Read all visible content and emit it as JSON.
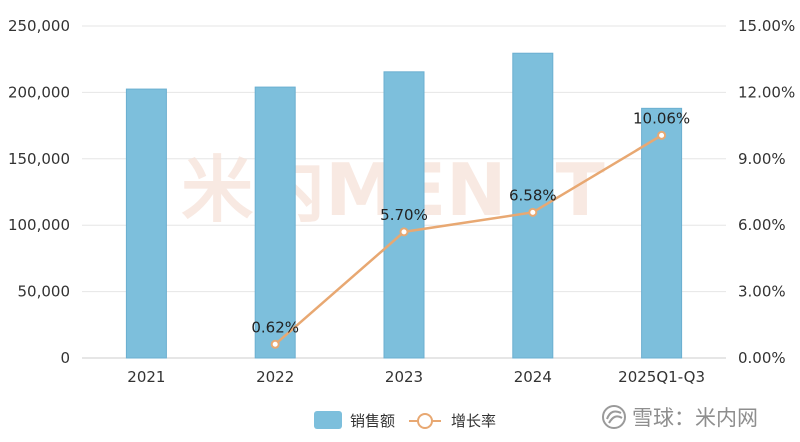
{
  "chart_data": {
    "type": "bar",
    "categories": [
      "2021",
      "2022",
      "2023",
      "2024",
      "2025Q1-Q3"
    ],
    "series": [
      {
        "name": "销售额",
        "kind": "bar",
        "axis": "left",
        "values": [
          202500,
          204000,
          215500,
          229500,
          188000
        ]
      },
      {
        "name": "增长率",
        "kind": "line",
        "axis": "right",
        "values": [
          null,
          0.62,
          5.7,
          6.58,
          10.06
        ],
        "labels": [
          "",
          "0.62%",
          "5.70%",
          "6.58%",
          "10.06%"
        ]
      }
    ],
    "y_left": {
      "ylim": [
        0,
        250000
      ],
      "ticks": [
        "0",
        "50,000",
        "100,000",
        "150,000",
        "200,000",
        "250,000"
      ]
    },
    "y_right": {
      "ylim": [
        0,
        15
      ],
      "ticks": [
        "0.00%",
        "3.00%",
        "6.00%",
        "9.00%",
        "12.00%",
        "15.00%"
      ]
    },
    "grid": true,
    "legend_position": "bottom-center",
    "colors": {
      "bar": "#7DBFDC",
      "bar_stroke": "#6BAFD0",
      "line": "#E8A872",
      "marker_fill": "#FFFFFF",
      "grid": "#E6E6E6"
    }
  },
  "watermark": {
    "text": "米内MENET",
    "color": "#F6E2D9"
  },
  "source_badge": {
    "icon": "snowball-icon",
    "text": "雪球：米内网"
  }
}
